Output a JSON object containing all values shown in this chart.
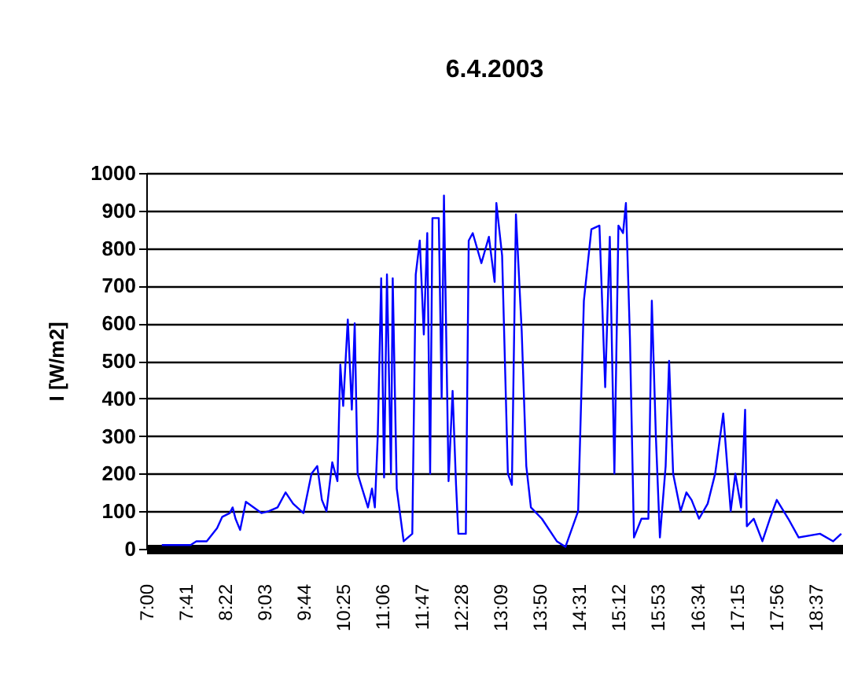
{
  "chart_data": {
    "type": "line",
    "title": "6.4.2003",
    "ylabel": "I [W/m2]",
    "x": [
      7.27,
      7.77,
      7.87,
      8.05,
      8.23,
      8.32,
      8.45,
      8.5,
      8.55,
      8.63,
      8.73,
      8.82,
      9.0,
      9.13,
      9.28,
      9.42,
      9.55,
      9.73,
      9.87,
      9.97,
      10.05,
      10.13,
      10.23,
      10.32,
      10.37,
      10.42,
      10.5,
      10.57,
      10.62,
      10.67,
      10.77,
      10.85,
      10.92,
      10.97,
      11.02,
      11.08,
      11.13,
      11.18,
      11.25,
      11.28,
      11.35,
      11.47,
      11.62,
      11.68,
      11.75,
      11.82,
      11.88,
      11.93,
      11.97,
      12.08,
      12.13,
      12.17,
      12.25,
      12.32,
      12.38,
      12.42,
      12.55,
      12.6,
      12.67,
      12.82,
      12.95,
      13.05,
      13.08,
      13.18,
      13.28,
      13.35,
      13.42,
      13.52,
      13.6,
      13.68,
      13.87,
      14.13,
      14.28,
      14.5,
      14.6,
      14.73,
      14.87,
      14.97,
      15.05,
      15.13,
      15.2,
      15.28,
      15.33,
      15.4,
      15.47,
      15.6,
      15.72,
      15.78,
      15.85,
      15.92,
      16.02,
      16.08,
      16.15,
      16.28,
      16.38,
      16.47,
      16.6,
      16.75,
      16.88,
      17.02,
      17.15,
      17.23,
      17.33,
      17.4,
      17.43,
      17.55,
      17.7,
      17.83,
      17.95,
      18.15,
      18.33,
      18.7,
      18.93,
      19.07
    ],
    "series": [
      {
        "color": "#0000ff",
        "values": [
          10,
          10,
          20,
          20,
          55,
          85,
          95,
          110,
          80,
          50,
          125,
          115,
          95,
          100,
          110,
          150,
          120,
          95,
          200,
          220,
          130,
          100,
          230,
          180,
          490,
          380,
          610,
          370,
          600,
          200,
          150,
          110,
          160,
          110,
          300,
          720,
          190,
          730,
          200,
          720,
          160,
          20,
          40,
          730,
          820,
          570,
          840,
          200,
          880,
          880,
          400,
          940,
          180,
          420,
          170,
          40,
          40,
          820,
          840,
          760,
          830,
          710,
          920,
          780,
          200,
          170,
          890,
          580,
          220,
          110,
          80,
          20,
          5,
          100,
          660,
          850,
          860,
          430,
          830,
          200,
          860,
          840,
          920,
          560,
          30,
          80,
          80,
          660,
          300,
          30,
          220,
          500,
          200,
          100,
          150,
          130,
          80,
          120,
          200,
          360,
          100,
          200,
          110,
          370,
          60,
          80,
          20,
          80,
          130,
          80,
          30,
          40,
          20,
          40
        ]
      }
    ],
    "xlim": [
      7,
      19.1
    ],
    "xticks": [
      {
        "value": 7,
        "label": "7:00"
      },
      {
        "value": 7.6833,
        "label": "7:41"
      },
      {
        "value": 8.3667,
        "label": "8:22"
      },
      {
        "value": 9.05,
        "label": "9:03"
      },
      {
        "value": 9.7333,
        "label": "9:44"
      },
      {
        "value": 10.4167,
        "label": "10:25"
      },
      {
        "value": 11.1,
        "label": "11:06"
      },
      {
        "value": 11.7833,
        "label": "11:47"
      },
      {
        "value": 12.4667,
        "label": "12:28"
      },
      {
        "value": 13.15,
        "label": "13:09"
      },
      {
        "value": 13.8333,
        "label": "13:50"
      },
      {
        "value": 14.5167,
        "label": "14:31"
      },
      {
        "value": 15.2,
        "label": "15:12"
      },
      {
        "value": 15.8833,
        "label": "15:53"
      },
      {
        "value": 16.5667,
        "label": "16:34"
      },
      {
        "value": 17.25,
        "label": "17:15"
      },
      {
        "value": 17.9333,
        "label": "17:56"
      },
      {
        "value": 18.6167,
        "label": "18:37"
      }
    ],
    "ylim": [
      0,
      1000
    ],
    "yticks": [
      0,
      100,
      200,
      300,
      400,
      500,
      600,
      700,
      800,
      900,
      1000
    ],
    "grid": "y",
    "legend": false,
    "marker": "none",
    "line_style": "solid"
  }
}
